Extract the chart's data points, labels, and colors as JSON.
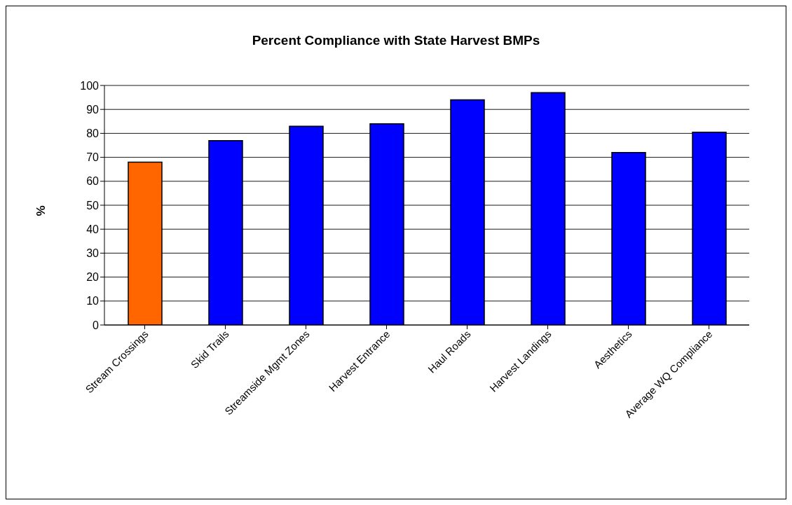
{
  "chart_data": {
    "type": "bar",
    "title": "Percent Compliance with State Harvest BMPs",
    "ylabel": "%",
    "categories": [
      "Stream Crossings",
      "Skid Trails",
      "Streamside Mgmt Zones",
      "Harvest Entrance",
      "Haul Roads",
      "Harvest Landings",
      "Aesthetics",
      "Average WQ Compliance"
    ],
    "values": [
      68,
      77,
      83,
      84,
      94,
      97,
      72,
      80.5
    ],
    "colors": [
      "#ff6600",
      "#0000ff",
      "#0000ff",
      "#0000ff",
      "#0000ff",
      "#0000ff",
      "#0000ff",
      "#0000ff"
    ],
    "ylim": [
      0,
      100
    ],
    "yticks": [
      0,
      10,
      20,
      30,
      40,
      50,
      60,
      70,
      80,
      90,
      100
    ],
    "grid": "y",
    "legend": false
  }
}
